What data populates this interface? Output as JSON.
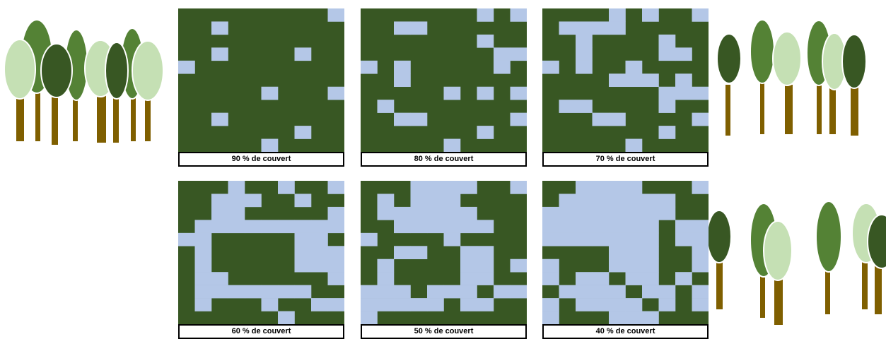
{
  "colors": {
    "forest": "#385723",
    "gap": "#b4c7e7",
    "trunk": "#7f5f00",
    "crown_dark": "#385723",
    "crown_mid": "#548235",
    "crown_light": "#c5e0b4"
  },
  "panels": [
    {
      "label": "90 % de couvert",
      "cover_percent": 90,
      "cells": [
        "0000000001",
        "0010000000",
        "0000000000",
        "0010000100",
        "1000000000",
        "0000000000",
        "0000010001",
        "0000000000",
        "0010000000",
        "0000000100",
        "0000010000"
      ]
    },
    {
      "label": "80 % de couvert",
      "cover_percent": 80,
      "cells": [
        "0000000101",
        "0011000000",
        "0000000100",
        "0000000011",
        "1010000010",
        "0010000000",
        "0000010101",
        "0100000000",
        "0011000001",
        "0000000100",
        "0000010000"
      ]
    },
    {
      "label": "70 % de couvert",
      "cover_percent": 70,
      "cells": [
        "0000101001",
        "0111100000",
        "0010000100",
        "0010000110",
        "1010010000",
        "0000111010",
        "0000000111",
        "0110000100",
        "0001100001",
        "0000000100",
        "0000010000"
      ]
    },
    {
      "label": "60 % de couvert",
      "cover_percent": 60,
      "cells": [
        "0001001001",
        "0011100100",
        "0011000001",
        "0111111111",
        "1100000110",
        "0100000111",
        "0100000111",
        "0110000001",
        "0111111100",
        "0100010011",
        "0000001000"
      ]
    },
    {
      "label": "50 % de couvert",
      "cover_percent": 50,
      "cells": [
        "0001111001",
        "0101110000",
        "0111111000",
        "0011111100",
        "1000010000",
        "0011001100",
        "0100001101",
        "0100001100",
        "1110111011",
        "1111101100",
        "1000000000"
      ]
    },
    {
      "label": "40 % de couvert",
      "cover_percent": 40,
      "cells": [
        "0011110001",
        "0111111100",
        "1111111100",
        "1111111011",
        "1111111011",
        "0000111001",
        "1000111001",
        "1011011010",
        "0111101101",
        "1011110101",
        "1000111000"
      ]
    }
  ]
}
